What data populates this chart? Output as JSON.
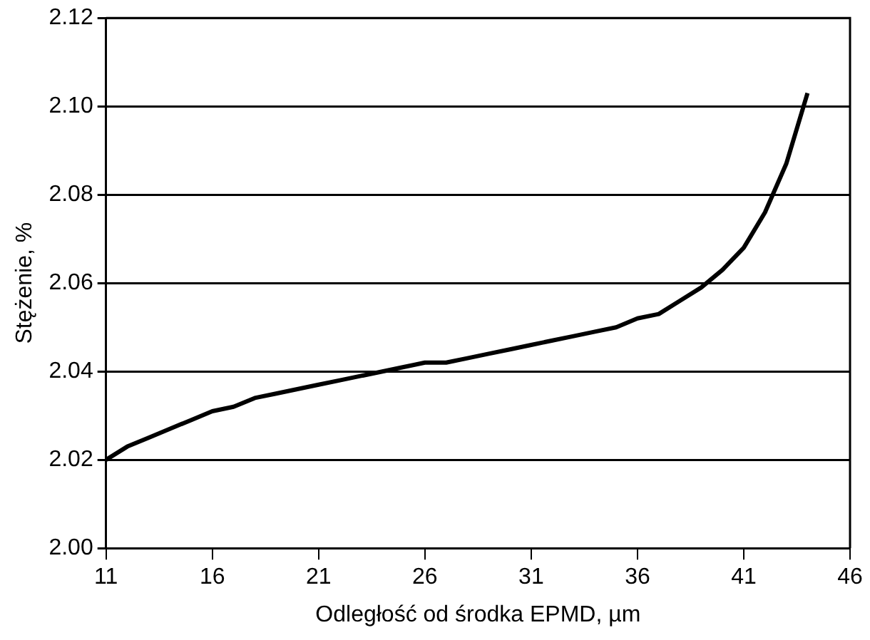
{
  "chart_data": {
    "type": "line",
    "xlabel": "Odległość od środka EPMD, µm",
    "ylabel": "Stężenie, %",
    "x": [
      11,
      12,
      13,
      14,
      15,
      16,
      17,
      18,
      19,
      20,
      21,
      22,
      23,
      24,
      25,
      26,
      27,
      28,
      29,
      30,
      31,
      32,
      33,
      34,
      35,
      36,
      37,
      38,
      39,
      40,
      41,
      42,
      43,
      44
    ],
    "series": [
      {
        "color": "#000000",
        "values": [
          2.02,
          2.023,
          2.025,
          2.027,
          2.029,
          2.031,
          2.032,
          2.034,
          2.035,
          2.036,
          2.037,
          2.038,
          2.039,
          2.04,
          2.041,
          2.042,
          2.042,
          2.043,
          2.044,
          2.045,
          2.046,
          2.047,
          2.048,
          2.049,
          2.05,
          2.052,
          2.053,
          2.056,
          2.059,
          2.063,
          2.068,
          2.076,
          2.087,
          2.103
        ]
      }
    ],
    "xlim": [
      11,
      46
    ],
    "xticks": [
      11,
      16,
      21,
      26,
      31,
      36,
      41,
      46
    ],
    "ylim": [
      2.0,
      2.12
    ],
    "yticks": [
      {
        "value": 2.0,
        "label": "2.00"
      },
      {
        "value": 2.02,
        "label": "2.02"
      },
      {
        "value": 2.04,
        "label": "2.04"
      },
      {
        "value": 2.06,
        "label": "2.06"
      },
      {
        "value": 2.08,
        "label": "2.08"
      },
      {
        "value": 2.1,
        "label": "2.10"
      },
      {
        "value": 2.12,
        "label": "2.12"
      }
    ],
    "grid": "y",
    "legend": false,
    "marker": "none",
    "line_style": "solid"
  }
}
